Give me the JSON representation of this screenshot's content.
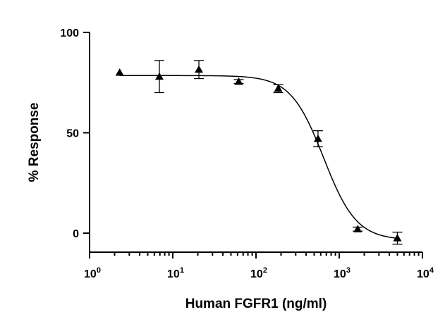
{
  "chart_data": {
    "type": "scatter",
    "xlabel": "Human FGFR1 (ng/ml)",
    "ylabel": "% Response",
    "x_scale": "log",
    "xlim": [
      1,
      10000
    ],
    "ylim": [
      -10,
      100
    ],
    "x_ticks": [
      {
        "value": 1,
        "base": "10",
        "exp": "0"
      },
      {
        "value": 10,
        "base": "10",
        "exp": "1"
      },
      {
        "value": 100,
        "base": "10",
        "exp": "2"
      },
      {
        "value": 1000,
        "base": "10",
        "exp": "3"
      },
      {
        "value": 10000,
        "base": "10",
        "exp": "4"
      }
    ],
    "y_ticks": [
      {
        "value": 0,
        "label": "0"
      },
      {
        "value": 50,
        "label": "50"
      },
      {
        "value": 100,
        "label": "100"
      }
    ],
    "grid": false,
    "legend": "none",
    "marker": "triangle",
    "points": [
      {
        "x": 2.3,
        "y": 80,
        "err": 0
      },
      {
        "x": 6.9,
        "y": 78,
        "err": 8
      },
      {
        "x": 20.6,
        "y": 81.5,
        "err": 4.5
      },
      {
        "x": 62,
        "y": 75.5,
        "err": 1
      },
      {
        "x": 185,
        "y": 72,
        "err": 2
      },
      {
        "x": 556,
        "y": 47,
        "err": 4
      },
      {
        "x": 1667,
        "y": 2,
        "err": 1
      },
      {
        "x": 5000,
        "y": -2.5,
        "err": 3
      }
    ],
    "fit": {
      "model": "four-parameter logistic",
      "top": 78.5,
      "bottom": -3.5,
      "ec50": 650,
      "hill": 2.2
    }
  }
}
